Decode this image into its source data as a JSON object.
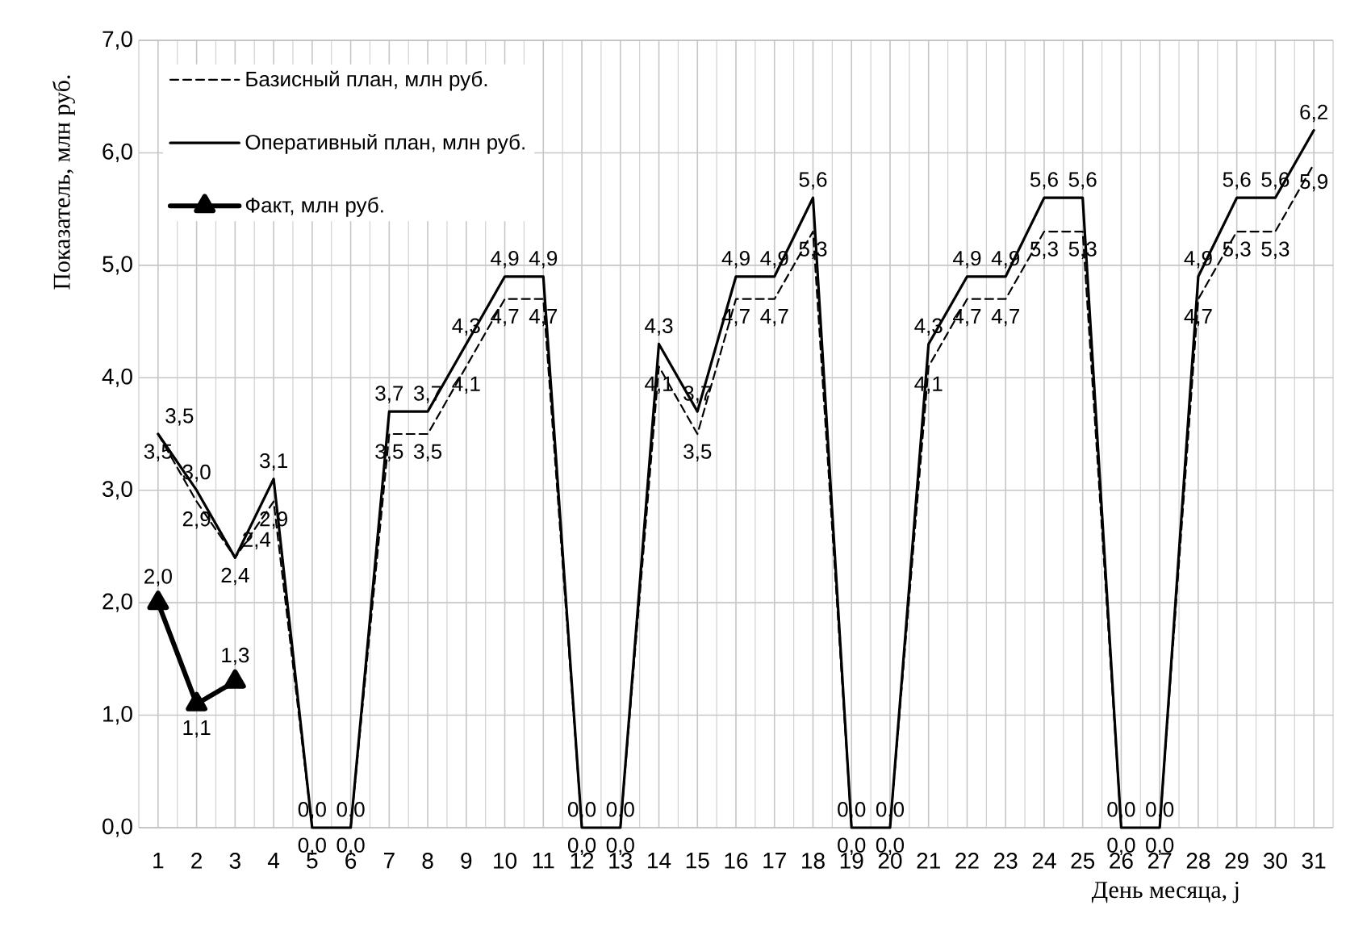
{
  "chart_data": {
    "type": "line",
    "xlabel": "День месяца, j",
    "ylabel": "Показатель, млн руб.",
    "categories": [
      "1",
      "2",
      "3",
      "4",
      "5",
      "6",
      "7",
      "8",
      "9",
      "10",
      "11",
      "12",
      "13",
      "14",
      "15",
      "16",
      "17",
      "18",
      "19",
      "20",
      "21",
      "22",
      "23",
      "24",
      "25",
      "26",
      "27",
      "28",
      "29",
      "30",
      "31"
    ],
    "ylim": [
      0,
      7
    ],
    "yticks": [
      {
        "value": 0,
        "label": "0,0"
      },
      {
        "value": 1,
        "label": "1,0"
      },
      {
        "value": 2,
        "label": "2,0"
      },
      {
        "value": 3,
        "label": "3,0"
      },
      {
        "value": 4,
        "label": "4,0"
      },
      {
        "value": 5,
        "label": "5,0"
      },
      {
        "value": 6,
        "label": "6,0"
      },
      {
        "value": 7,
        "label": "7,0"
      }
    ],
    "grid": true,
    "legend": "top left",
    "series": [
      {
        "name": "Базисный план, млн руб.",
        "color": "#000000",
        "line_style": "dashed",
        "values": [
          3.5,
          2.9,
          2.4,
          2.9,
          0,
          0,
          3.5,
          3.5,
          4.1,
          4.7,
          4.7,
          0,
          0,
          4.1,
          3.5,
          4.7,
          4.7,
          5.3,
          0,
          0,
          4.1,
          4.7,
          4.7,
          5.3,
          5.3,
          0,
          0,
          4.7,
          5.3,
          5.3,
          5.9
        ],
        "value_labels": [
          "3,5",
          "2,9",
          "2,4",
          "2,9",
          "0,0",
          "0,0",
          "3,5",
          "3,5",
          "4,1",
          "4,7",
          "4,7",
          "0,0",
          "0,0",
          "4,1",
          "3,5",
          "4,7",
          "4,7",
          "5,3",
          "0,0",
          "0,0",
          "4,1",
          "4,7",
          "4,7",
          "5,3",
          "5,3",
          "0,0",
          "0,0",
          "4,7",
          "5,3",
          "5,3",
          "5,9"
        ]
      },
      {
        "name": "Оперативный план, млн руб.",
        "color": "#000000",
        "line_style": "solid",
        "values": [
          3.5,
          3.0,
          2.4,
          3.1,
          0,
          0,
          3.7,
          3.7,
          4.3,
          4.9,
          4.9,
          0,
          0,
          4.3,
          3.7,
          4.9,
          4.9,
          5.6,
          0,
          0,
          4.3,
          4.9,
          4.9,
          5.6,
          5.6,
          0,
          0,
          4.9,
          5.6,
          5.6,
          6.2
        ],
        "value_labels": [
          "3,5",
          "3,0",
          "2,4",
          "3,1",
          "0,0",
          "0,0",
          "3,7",
          "3,7",
          "4,3",
          "4,9",
          "4,9",
          "0,0",
          "0,0",
          "4,3",
          "3,7",
          "4,9",
          "4,9",
          "5,6",
          "0,0",
          "0,0",
          "4,3",
          "4,9",
          "4,9",
          "5,6",
          "5,6",
          "0,0",
          "0,0",
          "4,9",
          "5,6",
          "5,6",
          "6,2"
        ]
      },
      {
        "name": "Факт, млн руб.",
        "color": "#000000",
        "line_style": "solid",
        "marker": "triangle",
        "values": [
          2.0,
          1.1,
          1.3,
          null,
          null,
          null,
          null,
          null,
          null,
          null,
          null,
          null,
          null,
          null,
          null,
          null,
          null,
          null,
          null,
          null,
          null,
          null,
          null,
          null,
          null,
          null,
          null,
          null,
          null,
          null,
          null
        ],
        "value_labels": [
          "2,0",
          "1,1",
          "1,3",
          null,
          null,
          null,
          null,
          null,
          null,
          null,
          null,
          null,
          null,
          null,
          null,
          null,
          null,
          null,
          null,
          null,
          null,
          null,
          null,
          null,
          null,
          null,
          null,
          null,
          null,
          null,
          null
        ]
      }
    ]
  }
}
